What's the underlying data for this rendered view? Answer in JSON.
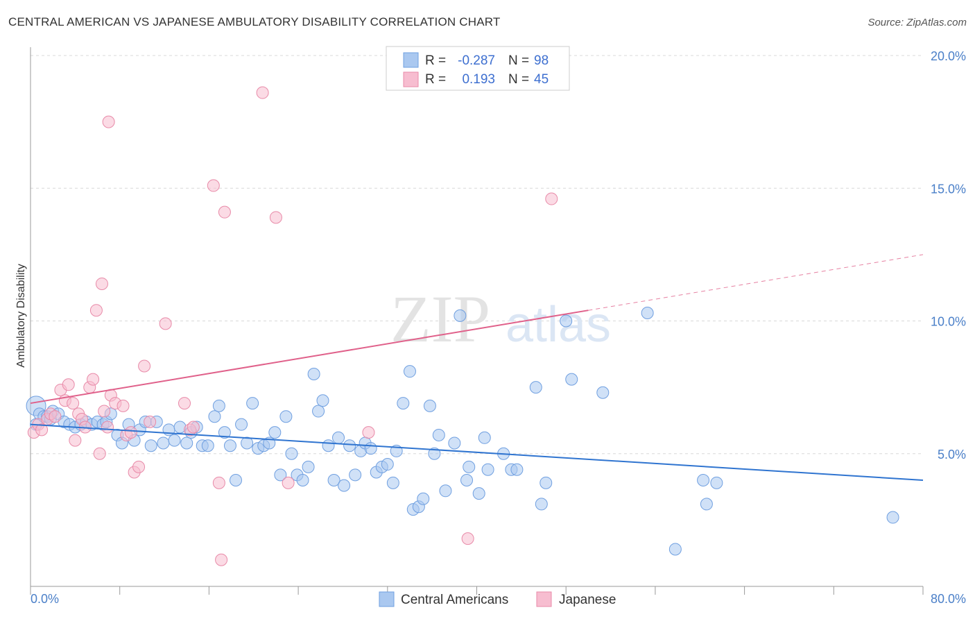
{
  "title": "CENTRAL AMERICAN VS JAPANESE AMBULATORY DISABILITY CORRELATION CHART",
  "source": "Source: ZipAtlas.com",
  "watermark": {
    "zip": "ZIP",
    "atlas": "atlas"
  },
  "colors": {
    "blue_fill": "#aac8f0",
    "blue_stroke": "#6f9fe0",
    "blue_line": "#2f74d0",
    "pink_fill": "#f7bdd0",
    "pink_stroke": "#e88aa8",
    "pink_line": "#e0608a",
    "axis_text": "#4a7fc8",
    "grid": "#d8d8d8"
  },
  "legend": {
    "rows": [
      {
        "r_label": "R =",
        "r_value": "-0.287",
        "n_label": "N =",
        "n_value": "98"
      },
      {
        "r_label": "R =",
        "r_value": "0.193",
        "n_label": "N =",
        "n_value": "45"
      }
    ]
  },
  "bottom_legend": [
    "Central Americans",
    "Japanese"
  ],
  "chart_data": {
    "type": "scatter",
    "ylabel": "Ambulatory Disability",
    "x_tick_labels": [
      "0.0%",
      "80.0%"
    ],
    "y_tick_labels": [
      "5.0%",
      "10.0%",
      "15.0%",
      "20.0%"
    ],
    "xlim": [
      0,
      80
    ],
    "ylim": [
      0,
      20
    ],
    "grid": true,
    "legend_position": "top-center",
    "series": [
      {
        "name": "Central Americans",
        "trend": {
          "x0": 0,
          "y0": 6.1,
          "x1": 80,
          "y1": 4.0
        },
        "points": [
          [
            0.5,
            6.8
          ],
          [
            0.5,
            6.1
          ],
          [
            0.8,
            6.5
          ],
          [
            1.2,
            6.4
          ],
          [
            1.5,
            6.4
          ],
          [
            1.8,
            6.3
          ],
          [
            2.0,
            6.6
          ],
          [
            2.5,
            6.5
          ],
          [
            3,
            6.2
          ],
          [
            3.5,
            6.1
          ],
          [
            4,
            6.0
          ],
          [
            4.5,
            6.1
          ],
          [
            5,
            6.2
          ],
          [
            5.5,
            6.1
          ],
          [
            6,
            6.2
          ],
          [
            6.5,
            6.1
          ],
          [
            6.8,
            6.2
          ],
          [
            7.2,
            6.5
          ],
          [
            7.8,
            5.7
          ],
          [
            8.2,
            5.4
          ],
          [
            8.8,
            6.1
          ],
          [
            9.3,
            5.5
          ],
          [
            9.8,
            5.9
          ],
          [
            10.3,
            6.2
          ],
          [
            10.8,
            5.3
          ],
          [
            11.3,
            6.2
          ],
          [
            11.9,
            5.4
          ],
          [
            12.4,
            5.9
          ],
          [
            12.9,
            5.5
          ],
          [
            13.4,
            6.0
          ],
          [
            14.0,
            5.4
          ],
          [
            14.4,
            5.8
          ],
          [
            14.9,
            6.0
          ],
          [
            15.4,
            5.3
          ],
          [
            15.9,
            5.3
          ],
          [
            16.5,
            6.4
          ],
          [
            16.9,
            6.8
          ],
          [
            17.4,
            5.8
          ],
          [
            17.9,
            5.3
          ],
          [
            18.4,
            4.0
          ],
          [
            18.9,
            6.1
          ],
          [
            19.4,
            5.4
          ],
          [
            19.9,
            6.9
          ],
          [
            20.4,
            5.2
          ],
          [
            20.9,
            5.3
          ],
          [
            21.4,
            5.4
          ],
          [
            21.9,
            5.8
          ],
          [
            22.4,
            4.2
          ],
          [
            22.9,
            6.4
          ],
          [
            23.4,
            5.0
          ],
          [
            23.9,
            4.2
          ],
          [
            24.4,
            4.0
          ],
          [
            24.9,
            4.5
          ],
          [
            25.4,
            8.0
          ],
          [
            25.8,
            6.6
          ],
          [
            26.2,
            7.0
          ],
          [
            26.7,
            5.3
          ],
          [
            27.2,
            4.0
          ],
          [
            27.6,
            5.6
          ],
          [
            28.1,
            3.8
          ],
          [
            28.6,
            5.3
          ],
          [
            29.1,
            4.2
          ],
          [
            29.6,
            5.1
          ],
          [
            30.0,
            5.4
          ],
          [
            30.5,
            5.2
          ],
          [
            31.0,
            4.3
          ],
          [
            31.5,
            4.5
          ],
          [
            32.0,
            4.6
          ],
          [
            32.5,
            3.9
          ],
          [
            32.8,
            5.1
          ],
          [
            33.4,
            6.9
          ],
          [
            34.0,
            8.1
          ],
          [
            34.3,
            2.9
          ],
          [
            34.8,
            3.0
          ],
          [
            35.2,
            3.3
          ],
          [
            35.8,
            6.8
          ],
          [
            36.2,
            5.0
          ],
          [
            36.6,
            5.7
          ],
          [
            37.2,
            3.6
          ],
          [
            38.0,
            5.4
          ],
          [
            38.5,
            10.2
          ],
          [
            39.1,
            4.0
          ],
          [
            39.3,
            4.5
          ],
          [
            40.2,
            3.5
          ],
          [
            40.7,
            5.6
          ],
          [
            41.0,
            4.4
          ],
          [
            42.4,
            5.0
          ],
          [
            43.1,
            4.4
          ],
          [
            43.6,
            4.4
          ],
          [
            45.3,
            7.5
          ],
          [
            45.8,
            3.1
          ],
          [
            46.2,
            3.9
          ],
          [
            48.0,
            10.0
          ],
          [
            48.5,
            7.8
          ],
          [
            51.3,
            7.3
          ],
          [
            55.3,
            10.3
          ],
          [
            57.8,
            1.4
          ],
          [
            60.3,
            4.0
          ],
          [
            60.6,
            3.1
          ],
          [
            61.5,
            3.9
          ],
          [
            77.3,
            2.6
          ]
        ]
      },
      {
        "name": "Japanese",
        "trend": {
          "x0": 0,
          "y0": 6.9,
          "x1": 50,
          "y1": 10.4
        },
        "trend_dashed": {
          "x0": 50,
          "y0": 10.4,
          "x1": 80,
          "y1": 12.5
        },
        "points": [
          [
            0.3,
            5.8
          ],
          [
            0.7,
            6.1
          ],
          [
            1.0,
            5.9
          ],
          [
            1.5,
            6.3
          ],
          [
            1.8,
            6.5
          ],
          [
            2.2,
            6.4
          ],
          [
            2.7,
            7.4
          ],
          [
            3.1,
            7.0
          ],
          [
            3.4,
            7.6
          ],
          [
            3.8,
            6.9
          ],
          [
            4.0,
            5.5
          ],
          [
            4.3,
            6.5
          ],
          [
            4.6,
            6.3
          ],
          [
            4.9,
            6.0
          ],
          [
            5.3,
            7.5
          ],
          [
            5.6,
            7.8
          ],
          [
            5.9,
            10.4
          ],
          [
            6.2,
            5.0
          ],
          [
            6.4,
            11.4
          ],
          [
            6.6,
            6.6
          ],
          [
            6.9,
            6.0
          ],
          [
            7.2,
            7.2
          ],
          [
            7.0,
            17.5
          ],
          [
            7.6,
            6.9
          ],
          [
            8.3,
            6.8
          ],
          [
            8.6,
            5.7
          ],
          [
            9.0,
            5.8
          ],
          [
            9.3,
            4.3
          ],
          [
            9.7,
            4.5
          ],
          [
            10.2,
            8.3
          ],
          [
            10.7,
            6.2
          ],
          [
            12.1,
            9.9
          ],
          [
            13.8,
            6.9
          ],
          [
            14.3,
            5.9
          ],
          [
            14.6,
            6.0
          ],
          [
            16.4,
            15.1
          ],
          [
            16.9,
            3.9
          ],
          [
            17.1,
            1.0
          ],
          [
            17.4,
            14.1
          ],
          [
            20.8,
            18.6
          ],
          [
            22.0,
            13.9
          ],
          [
            23.1,
            3.9
          ],
          [
            30.3,
            5.8
          ],
          [
            39.2,
            1.8
          ],
          [
            46.7,
            14.6
          ]
        ]
      }
    ]
  }
}
